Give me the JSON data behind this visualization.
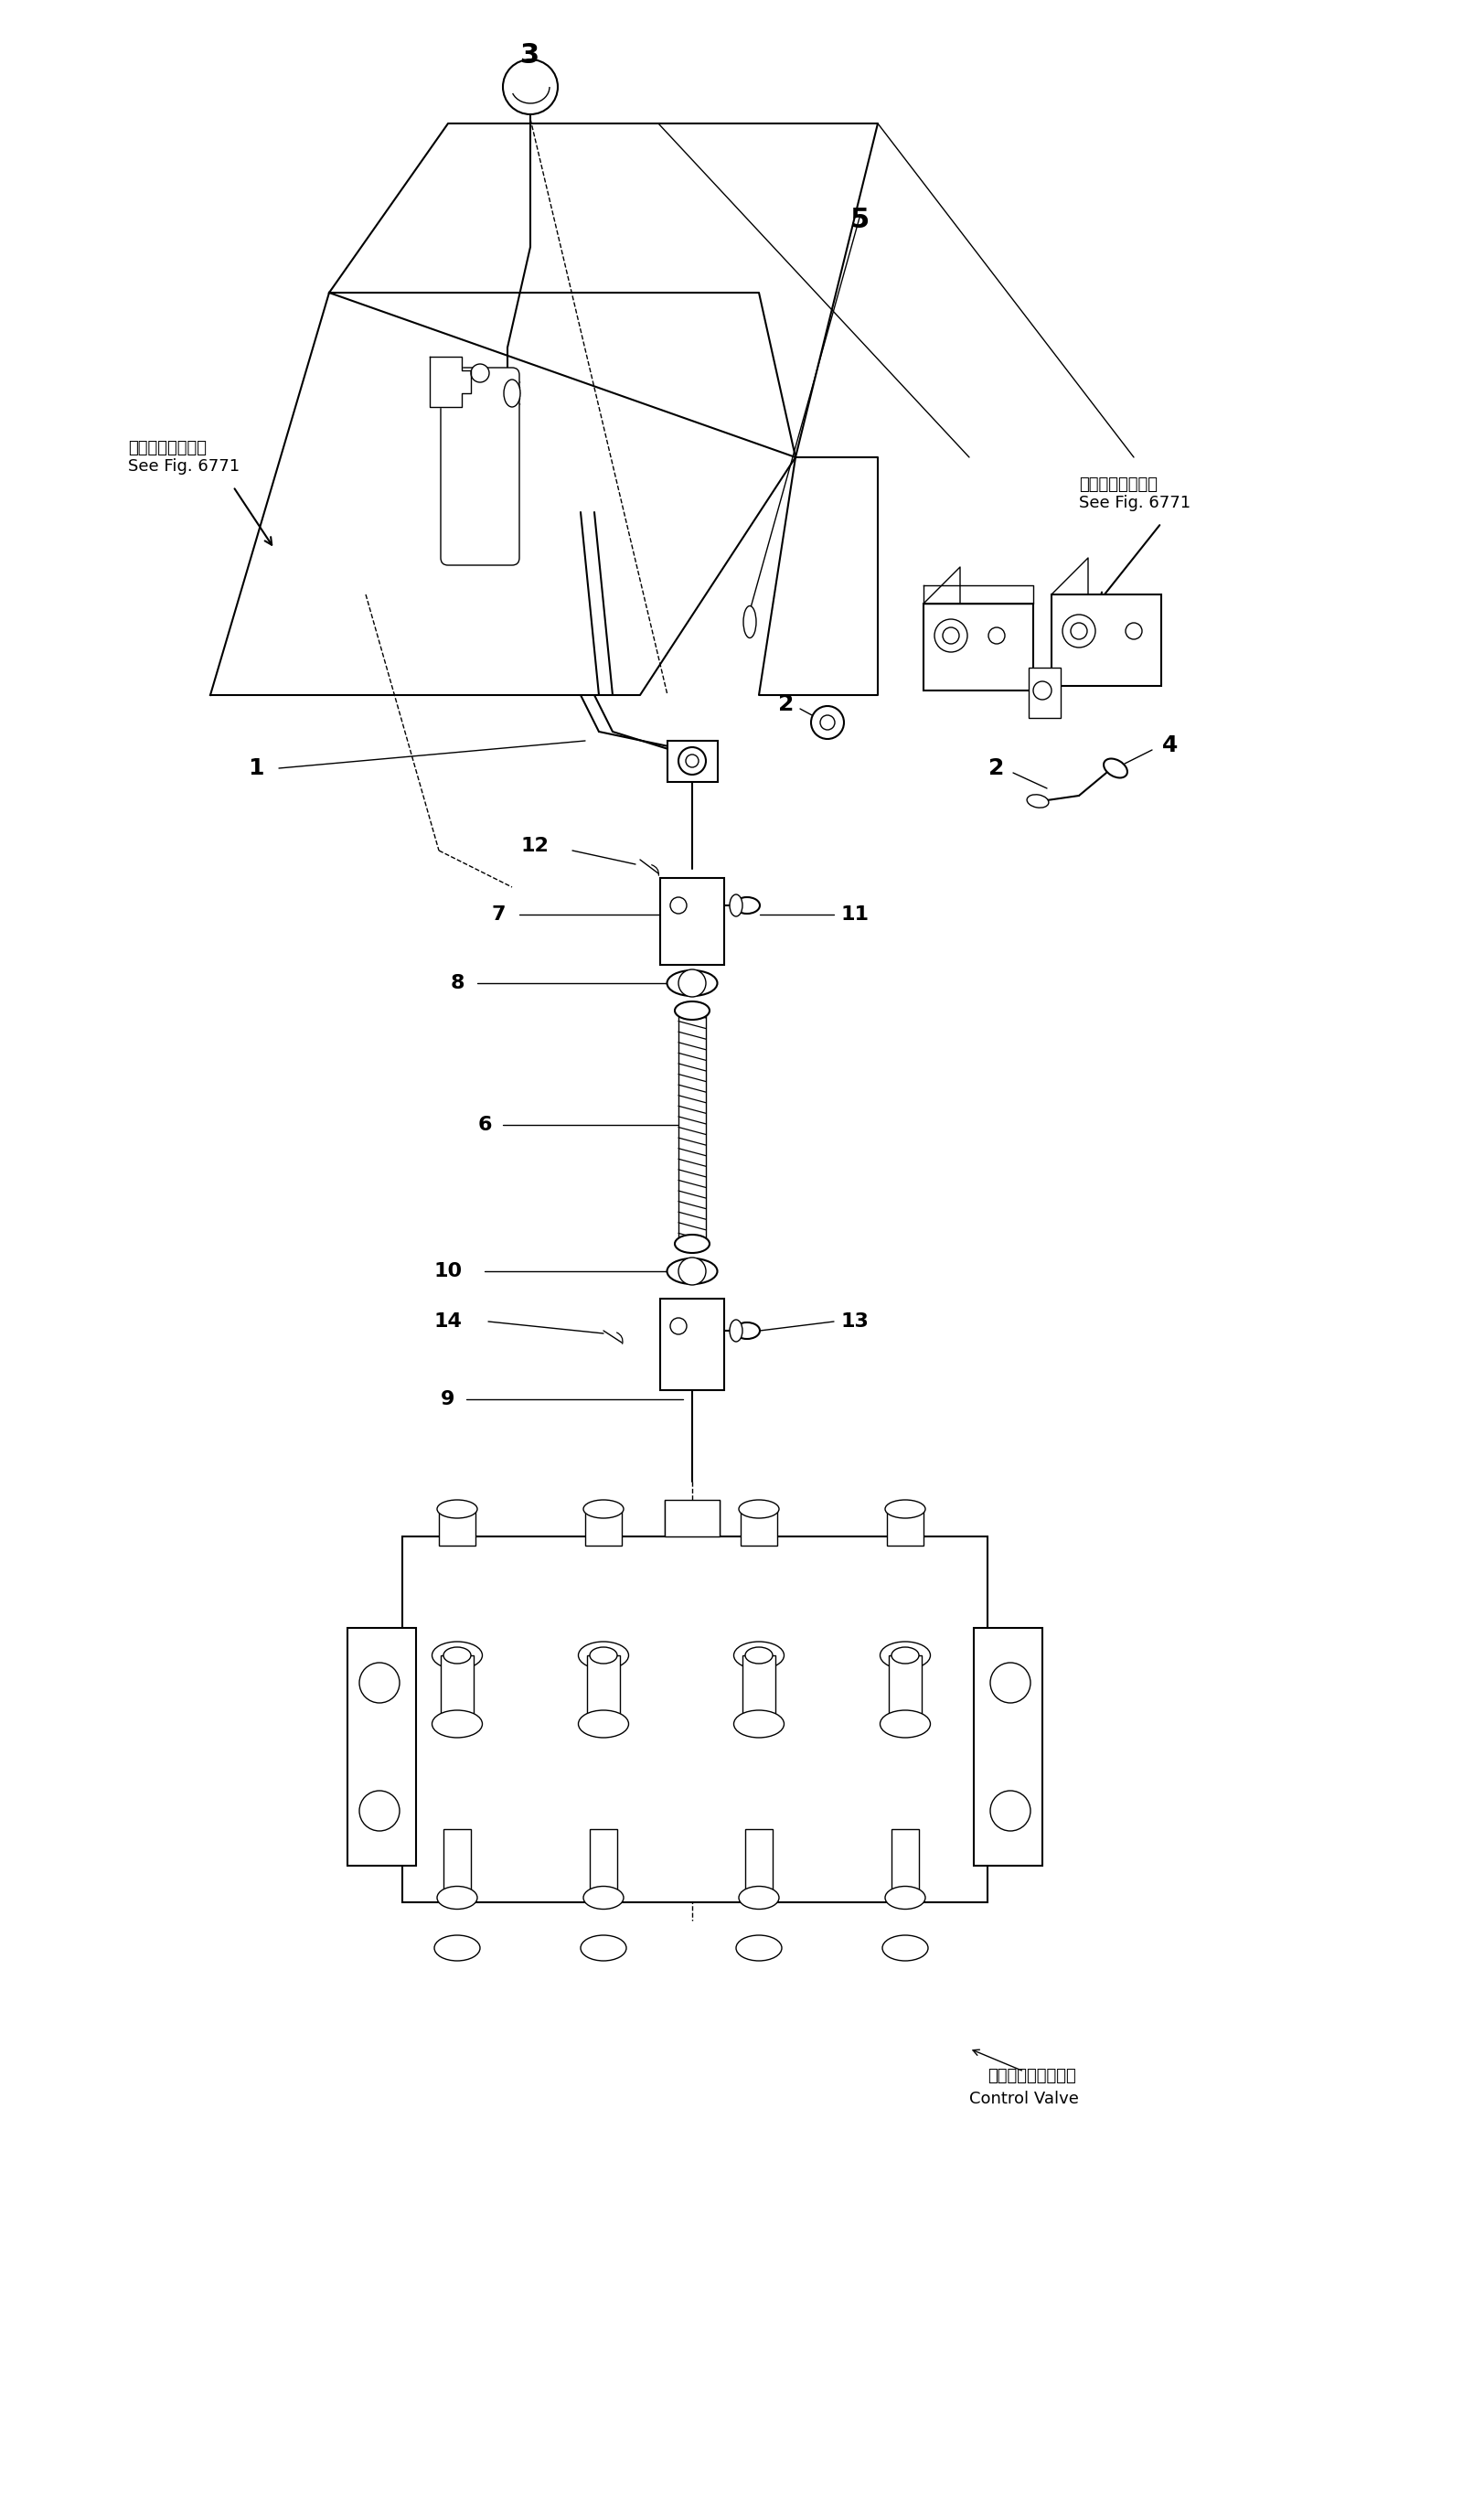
{
  "bg_color": "#ffffff",
  "line_color": "#000000",
  "fig_width": 16.24,
  "fig_height": 27.27,
  "annotations": {
    "see_fig_left_ja": "第６７７１図参照",
    "see_fig_left_en": "See Fig. 6771",
    "see_fig_right_ja": "第６７７１図参照",
    "see_fig_right_en": "See Fig. 6771",
    "control_valve_ja": "コントロールバルブ",
    "control_valve_en": "Control Valve"
  }
}
